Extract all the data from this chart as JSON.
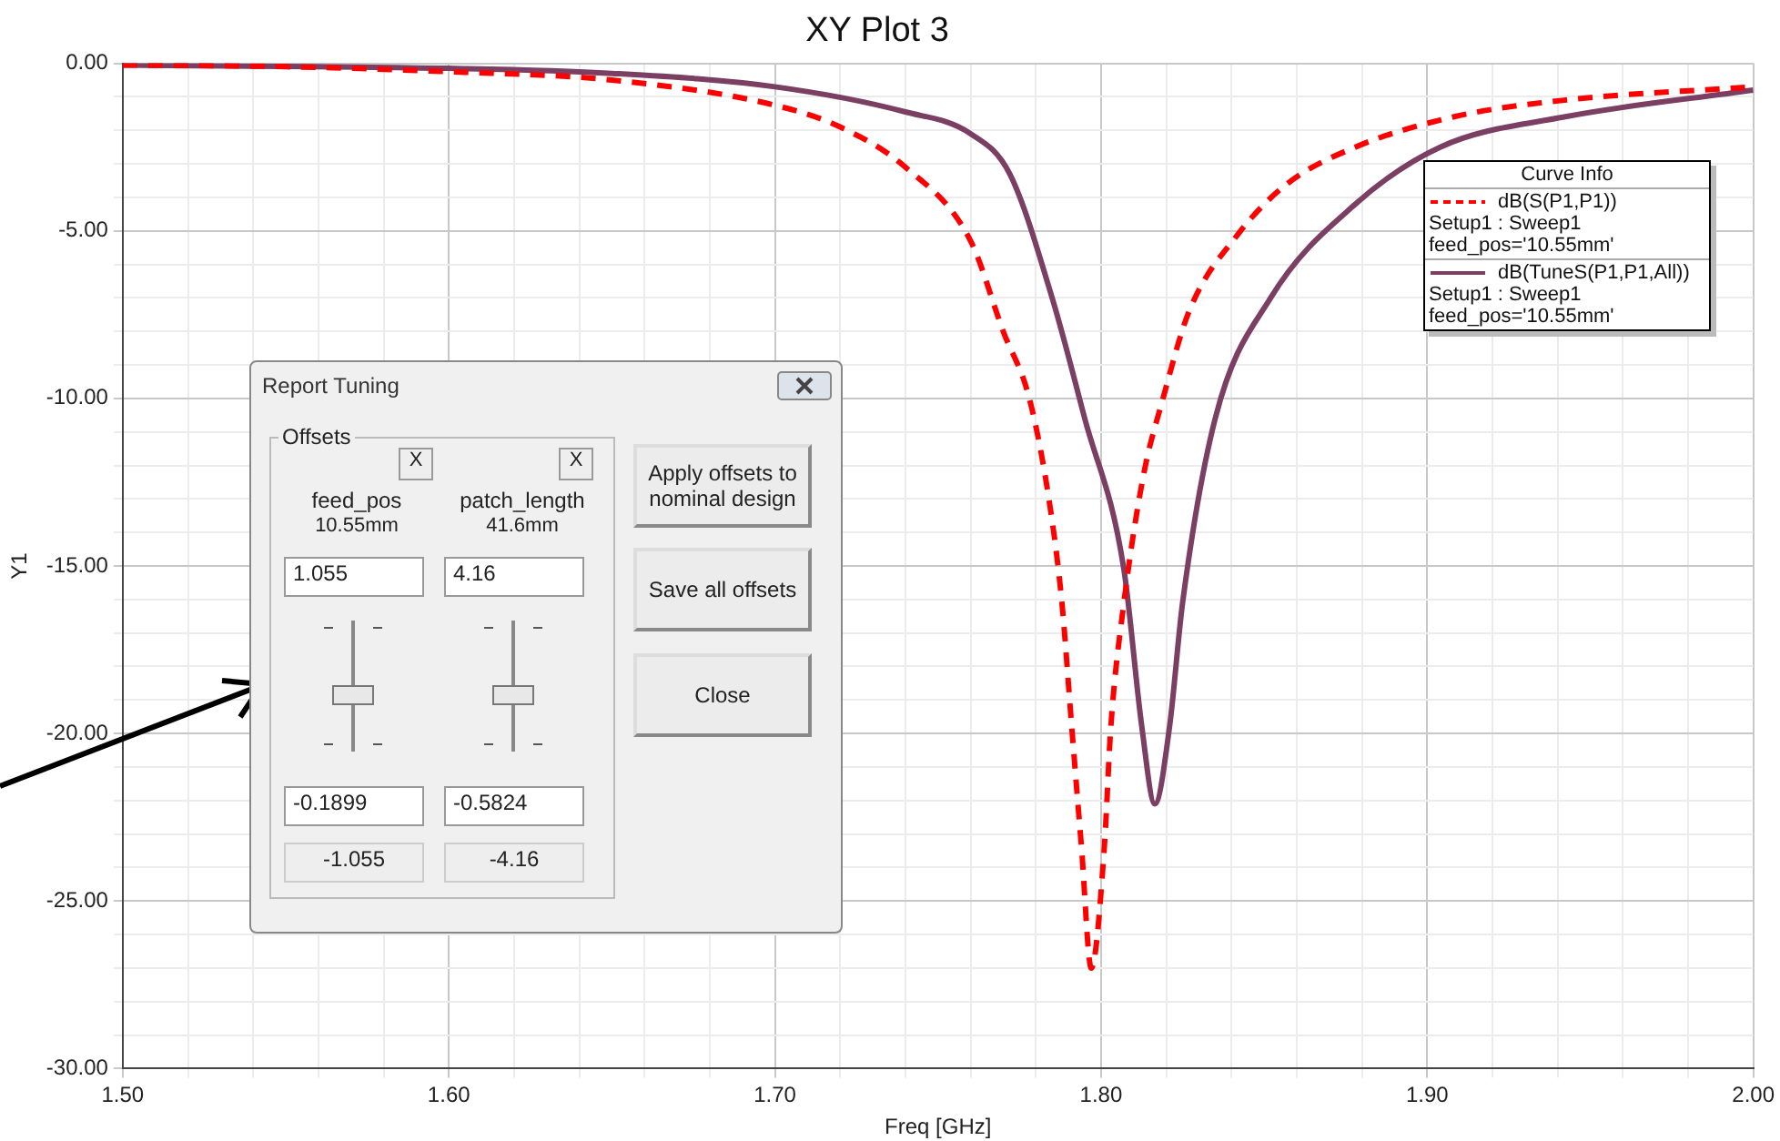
{
  "chart_data": {
    "type": "line",
    "title": "XY Plot 3",
    "xlabel": "Freq [GHz]",
    "ylabel": "Y1",
    "legend_title": "Curve Info",
    "legend": "top right",
    "grid": true,
    "marker": "none",
    "xlim": [
      1.5,
      2.0
    ],
    "ylim": [
      -30,
      0
    ],
    "xticks": [
      {
        "value": 1.5,
        "label": "1.50"
      },
      {
        "value": 1.52,
        "label": null
      },
      {
        "value": 1.54,
        "label": null
      },
      {
        "value": 1.56,
        "label": null
      },
      {
        "value": 1.58,
        "label": null
      },
      {
        "value": 1.6,
        "label": "1.60"
      },
      {
        "value": 1.62,
        "label": null
      },
      {
        "value": 1.64,
        "label": null
      },
      {
        "value": 1.66,
        "label": null
      },
      {
        "value": 1.68,
        "label": null
      },
      {
        "value": 1.7,
        "label": "1.70"
      },
      {
        "value": 1.72,
        "label": null
      },
      {
        "value": 1.74,
        "label": null
      },
      {
        "value": 1.76,
        "label": null
      },
      {
        "value": 1.78,
        "label": null
      },
      {
        "value": 1.8,
        "label": "1.80"
      },
      {
        "value": 1.82,
        "label": null
      },
      {
        "value": 1.84,
        "label": null
      },
      {
        "value": 1.86,
        "label": null
      },
      {
        "value": 1.88,
        "label": null
      },
      {
        "value": 1.9,
        "label": "1.90"
      },
      {
        "value": 1.92,
        "label": null
      },
      {
        "value": 1.94,
        "label": null
      },
      {
        "value": 1.96,
        "label": null
      },
      {
        "value": 1.98,
        "label": null
      },
      {
        "value": 2.0,
        "label": "2.00"
      }
    ],
    "yticks": [
      {
        "value": -30,
        "label": "-30.00"
      },
      {
        "value": -29,
        "label": null
      },
      {
        "value": -28,
        "label": null
      },
      {
        "value": -27,
        "label": null
      },
      {
        "value": -26,
        "label": null
      },
      {
        "value": -25,
        "label": "-25.00"
      },
      {
        "value": -24,
        "label": null
      },
      {
        "value": -23,
        "label": null
      },
      {
        "value": -22,
        "label": null
      },
      {
        "value": -21,
        "label": null
      },
      {
        "value": -20,
        "label": "-20.00"
      },
      {
        "value": -19,
        "label": null
      },
      {
        "value": -18,
        "label": null
      },
      {
        "value": -17,
        "label": null
      },
      {
        "value": -16,
        "label": null
      },
      {
        "value": -15,
        "label": "-15.00"
      },
      {
        "value": -14,
        "label": null
      },
      {
        "value": -13,
        "label": null
      },
      {
        "value": -12,
        "label": null
      },
      {
        "value": -11,
        "label": null
      },
      {
        "value": -10,
        "label": "-10.00"
      },
      {
        "value": -9,
        "label": null
      },
      {
        "value": -8,
        "label": null
      },
      {
        "value": -7,
        "label": null
      },
      {
        "value": -6,
        "label": null
      },
      {
        "value": -5,
        "label": "-5.00"
      },
      {
        "value": -4,
        "label": null
      },
      {
        "value": -3,
        "label": null
      },
      {
        "value": -2,
        "label": null
      },
      {
        "value": -1,
        "label": null
      },
      {
        "value": 0,
        "label": "0.00"
      }
    ],
    "series": [
      {
        "name": "dB(S(P1,P1))",
        "color": "#ff0000",
        "line_style": "dashed",
        "x": [
          1.5,
          1.55,
          1.6,
          1.65,
          1.7,
          1.72,
          1.74,
          1.76,
          1.77,
          1.778,
          1.784,
          1.788,
          1.791,
          1.794,
          1.797,
          1.801,
          1.803,
          1.807,
          1.813,
          1.819,
          1.827,
          1.842,
          1.857,
          1.878,
          1.908,
          1.942,
          2.0
        ],
        "values": [
          -0.05,
          -0.1,
          -0.25,
          -0.5,
          -1.25,
          -1.9,
          -3.1,
          -5.3,
          -8,
          -10,
          -13,
          -16.1,
          -19.8,
          -23.4,
          -27.0,
          -23.4,
          -19.8,
          -16.1,
          -12.3,
          -10,
          -7.4,
          -5.1,
          -3.6,
          -2.5,
          -1.6,
          -1.1,
          -0.7
        ]
      },
      {
        "name": "dB(TuneS(P1,P1,All))",
        "color": "#7b3f63",
        "line_style": "solid",
        "x": [
          1.5,
          1.6,
          1.65,
          1.7,
          1.74,
          1.76,
          1.772,
          1.785,
          1.795,
          1.807,
          1.8125,
          1.8165,
          1.821,
          1.825,
          1.835,
          1.852,
          1.878,
          1.904,
          1.942,
          2.0
        ],
        "values": [
          -0.05,
          -0.15,
          -0.3,
          -0.7,
          -1.45,
          -2.1,
          -3.3,
          -7.0,
          -10.6,
          -15.1,
          -19.8,
          -22.1,
          -19.8,
          -16.1,
          -10.6,
          -7.0,
          -4.2,
          -2.5,
          -1.6,
          -0.8
        ]
      }
    ],
    "annotations": [
      "Setup1 : Sweep1",
      "feed_pos='10.55mm'",
      "Setup1 : Sweep1",
      "feed_pos='10.55mm'",
      "Report Tuning",
      "Offsets",
      "X",
      "X",
      "feed_pos",
      "10.55mm",
      "patch_length",
      "41.6mm",
      "1.055",
      "4.16",
      "-0.1899",
      "-0.5824",
      "-1.055",
      "-4.16",
      "Apply offsets to nominal design",
      "Save all offsets",
      "Close"
    ]
  }
}
